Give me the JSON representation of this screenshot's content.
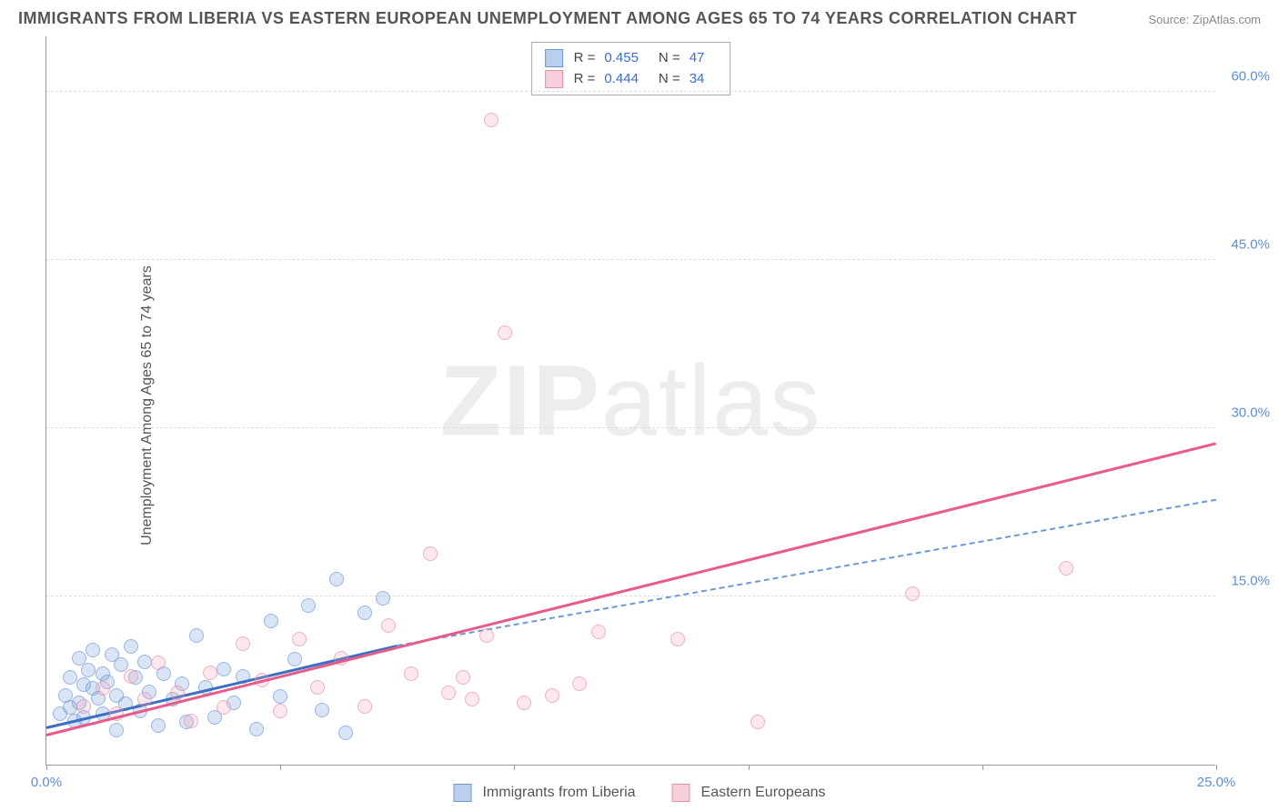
{
  "title": "IMMIGRANTS FROM LIBERIA VS EASTERN EUROPEAN UNEMPLOYMENT AMONG AGES 65 TO 74 YEARS CORRELATION CHART",
  "source": "Source: ZipAtlas.com",
  "y_axis_label": "Unemployment Among Ages 65 to 74 years",
  "watermark_bold": "ZIP",
  "watermark_light": "atlas",
  "chart": {
    "type": "scatter",
    "x_min": 0,
    "x_max": 25,
    "y_min": 0,
    "y_max": 65,
    "x_ticks": [
      0,
      5,
      10,
      15,
      20,
      25
    ],
    "x_tick_labels": {
      "0": "0.0%",
      "25": "25.0%"
    },
    "y_ticks": [
      15,
      30,
      45,
      60
    ],
    "y_tick_labels": {
      "15": "15.0%",
      "30": "30.0%",
      "45": "45.0%",
      "60": "60.0%"
    },
    "grid_color": "#dddddd",
    "background": "#ffffff",
    "series": [
      {
        "name": "Immigrants from Liberia",
        "color_fill": "rgba(120,160,220,0.4)",
        "color_stroke": "#6a98d8",
        "class": "blue",
        "R": "0.455",
        "N": "47",
        "trend": {
          "x1": 0,
          "y1": 3.2,
          "x2": 7.5,
          "y2": 10.5,
          "style": "blue-solid"
        },
        "trend_ext": {
          "x1": 7.5,
          "y1": 10.5,
          "x2": 25,
          "y2": 23.5,
          "style": "blue-dashed"
        },
        "points": [
          [
            0.3,
            4.5
          ],
          [
            0.4,
            6.2
          ],
          [
            0.5,
            5.1
          ],
          [
            0.5,
            7.8
          ],
          [
            0.6,
            3.9
          ],
          [
            0.7,
            9.5
          ],
          [
            0.7,
            5.5
          ],
          [
            0.8,
            7.1
          ],
          [
            0.8,
            4.2
          ],
          [
            0.9,
            8.4
          ],
          [
            1.0,
            6.8
          ],
          [
            1.0,
            10.2
          ],
          [
            1.1,
            5.9
          ],
          [
            1.2,
            8.1
          ],
          [
            1.2,
            4.5
          ],
          [
            1.3,
            7.4
          ],
          [
            1.4,
            9.8
          ],
          [
            1.5,
            6.2
          ],
          [
            1.5,
            3.1
          ],
          [
            1.6,
            8.9
          ],
          [
            1.7,
            5.4
          ],
          [
            1.8,
            10.5
          ],
          [
            1.9,
            7.8
          ],
          [
            2.0,
            4.8
          ],
          [
            2.1,
            9.2
          ],
          [
            2.2,
            6.5
          ],
          [
            2.4,
            3.5
          ],
          [
            2.5,
            8.1
          ],
          [
            2.7,
            5.8
          ],
          [
            2.9,
            7.2
          ],
          [
            3.0,
            3.8
          ],
          [
            3.2,
            11.5
          ],
          [
            3.4,
            6.9
          ],
          [
            3.6,
            4.2
          ],
          [
            3.8,
            8.5
          ],
          [
            4.0,
            5.5
          ],
          [
            4.2,
            7.9
          ],
          [
            4.5,
            3.2
          ],
          [
            4.8,
            12.8
          ],
          [
            5.0,
            6.1
          ],
          [
            5.3,
            9.4
          ],
          [
            5.6,
            14.2
          ],
          [
            5.9,
            4.9
          ],
          [
            6.2,
            16.5
          ],
          [
            6.4,
            2.8
          ],
          [
            6.8,
            13.5
          ],
          [
            7.2,
            14.8
          ]
        ]
      },
      {
        "name": "Eastern Europeans",
        "color_fill": "rgba(240,160,180,0.35)",
        "color_stroke": "#e890a8",
        "class": "pink",
        "R": "0.444",
        "N": "34",
        "trend": {
          "x1": 0,
          "y1": 2.5,
          "x2": 25,
          "y2": 28.5,
          "style": "pink-solid"
        },
        "points": [
          [
            0.8,
            5.2
          ],
          [
            1.2,
            6.8
          ],
          [
            1.5,
            4.5
          ],
          [
            1.8,
            7.9
          ],
          [
            2.1,
            5.8
          ],
          [
            2.4,
            9.1
          ],
          [
            2.8,
            6.4
          ],
          [
            3.1,
            3.9
          ],
          [
            3.5,
            8.2
          ],
          [
            3.8,
            5.1
          ],
          [
            4.2,
            10.8
          ],
          [
            4.6,
            7.5
          ],
          [
            5.0,
            4.8
          ],
          [
            5.4,
            11.2
          ],
          [
            5.8,
            6.9
          ],
          [
            6.3,
            9.5
          ],
          [
            6.8,
            5.2
          ],
          [
            7.3,
            12.4
          ],
          [
            7.8,
            8.1
          ],
          [
            8.2,
            18.8
          ],
          [
            8.6,
            6.4
          ],
          [
            9.1,
            5.8
          ],
          [
            9.4,
            11.5
          ],
          [
            10.2,
            5.5
          ],
          [
            9.5,
            57.5
          ],
          [
            9.8,
            38.5
          ],
          [
            11.4,
            7.2
          ],
          [
            11.8,
            11.8
          ],
          [
            13.5,
            11.2
          ],
          [
            15.2,
            3.8
          ],
          [
            18.5,
            15.2
          ],
          [
            21.8,
            17.5
          ],
          [
            8.9,
            7.8
          ],
          [
            10.8,
            6.2
          ]
        ]
      }
    ]
  },
  "legend_bottom": [
    {
      "class": "blue",
      "label": "Immigrants from Liberia"
    },
    {
      "class": "pink",
      "label": "Eastern Europeans"
    }
  ]
}
